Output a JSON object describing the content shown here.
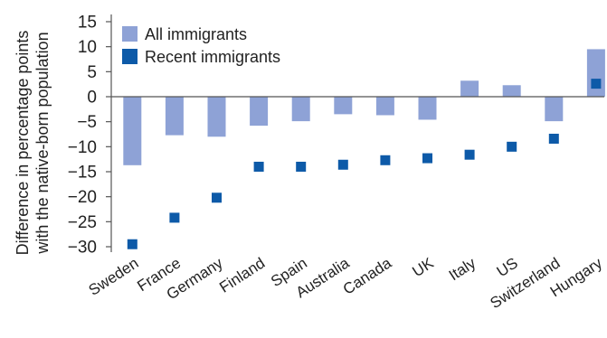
{
  "chart_data": {
    "type": "bar",
    "title": "",
    "ylabel_line1": "Difference in percentage points",
    "ylabel_line2": "with the native-born population",
    "xlabel": "",
    "ylim": [
      -30,
      15
    ],
    "yticks": [
      15,
      10,
      5,
      0,
      -5,
      -10,
      -15,
      -20,
      -25,
      -30
    ],
    "ytick_labels": [
      "15",
      "10",
      "5",
      "0",
      "−5",
      "−10",
      "−15",
      "−20",
      "−25",
      "−30"
    ],
    "grid": false,
    "legend_position": "top-left",
    "categories": [
      "Sweden",
      "France",
      "Germany",
      "Finland",
      "Spain",
      "Australia",
      "Canada",
      "UK",
      "Italy",
      "US",
      "Switzerland",
      "Hungary"
    ],
    "series": [
      {
        "name": "All immigrants",
        "kind": "bar",
        "color": "#8ea2d6",
        "values": [
          -13.7,
          -7.7,
          -8.0,
          -5.8,
          -4.9,
          -3.5,
          -3.7,
          -4.6,
          3.2,
          2.3,
          -4.9,
          9.5
        ]
      },
      {
        "name": "Recent immigrants",
        "kind": "marker",
        "color": "#0d5aa8",
        "values": [
          -29.5,
          -24.2,
          -20.2,
          -14.0,
          -14.0,
          -13.6,
          -12.7,
          -12.3,
          -11.6,
          -10.0,
          -8.4,
          2.6
        ]
      }
    ]
  }
}
